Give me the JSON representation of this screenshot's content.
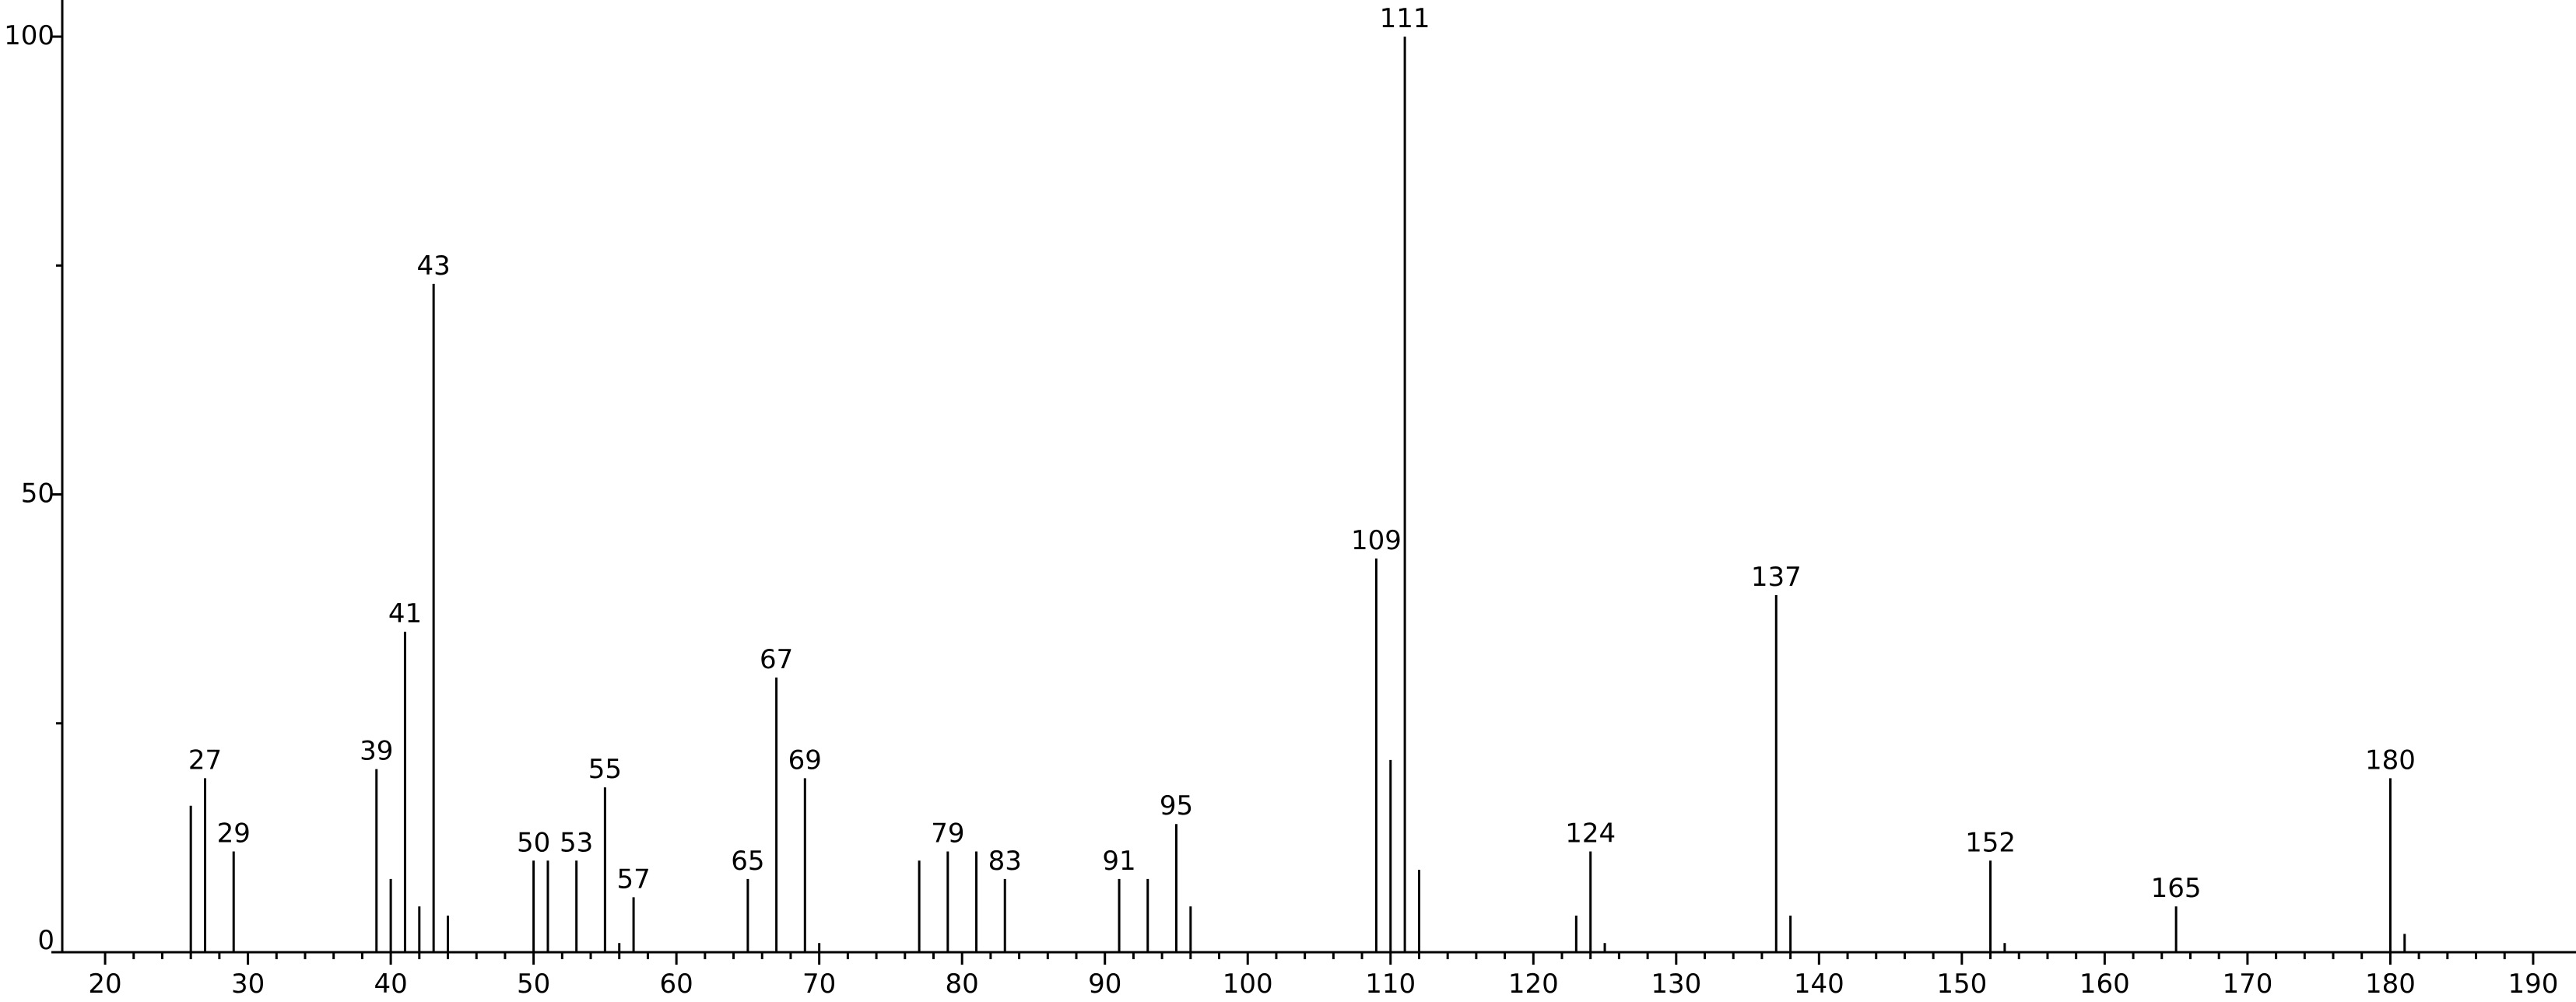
{
  "chart_data": {
    "type": "stick",
    "x": [
      26,
      27,
      29,
      39,
      40,
      41,
      42,
      43,
      44,
      50,
      51,
      53,
      55,
      56,
      57,
      65,
      67,
      69,
      70,
      77,
      79,
      81,
      83,
      91,
      93,
      95,
      96,
      109,
      110,
      111,
      112,
      123,
      124,
      125,
      137,
      138,
      152,
      153,
      165,
      180,
      181
    ],
    "values": [
      16,
      19,
      11,
      20,
      8,
      35,
      5,
      73,
      4,
      10,
      10,
      10,
      18,
      1,
      6,
      8,
      30,
      19,
      1,
      10,
      11,
      11,
      8,
      8,
      8,
      14,
      5,
      43,
      21,
      100,
      9,
      4,
      11,
      1,
      39,
      4,
      10,
      1,
      5,
      19,
      2
    ],
    "labeled": [
      false,
      true,
      true,
      true,
      false,
      true,
      false,
      true,
      false,
      true,
      false,
      true,
      true,
      false,
      true,
      true,
      true,
      true,
      false,
      false,
      true,
      false,
      true,
      true,
      false,
      true,
      false,
      true,
      false,
      true,
      false,
      false,
      true,
      false,
      true,
      false,
      true,
      false,
      true,
      true,
      false
    ],
    "color": "#000000",
    "xlim": [
      17,
      193
    ],
    "ylim": [
      0,
      104
    ],
    "xticks": [
      20,
      30,
      40,
      50,
      60,
      70,
      80,
      90,
      100,
      110,
      120,
      130,
      140,
      150,
      160,
      170,
      180,
      190
    ],
    "xminorticks": [
      22,
      24,
      26,
      28,
      32,
      34,
      36,
      38,
      42,
      44,
      46,
      48,
      52,
      54,
      56,
      58,
      62,
      64,
      66,
      68,
      72,
      74,
      76,
      78,
      82,
      84,
      86,
      88,
      92,
      94,
      96,
      98,
      102,
      104,
      106,
      108,
      112,
      114,
      116,
      118,
      122,
      124,
      126,
      128,
      132,
      134,
      136,
      138,
      142,
      144,
      146,
      148,
      152,
      154,
      156,
      158,
      162,
      164,
      166,
      168,
      172,
      174,
      176,
      178,
      182,
      184,
      186,
      188
    ],
    "yticks": [
      0,
      50,
      100
    ],
    "yminorticks": [
      25,
      75
    ],
    "grid": false
  }
}
